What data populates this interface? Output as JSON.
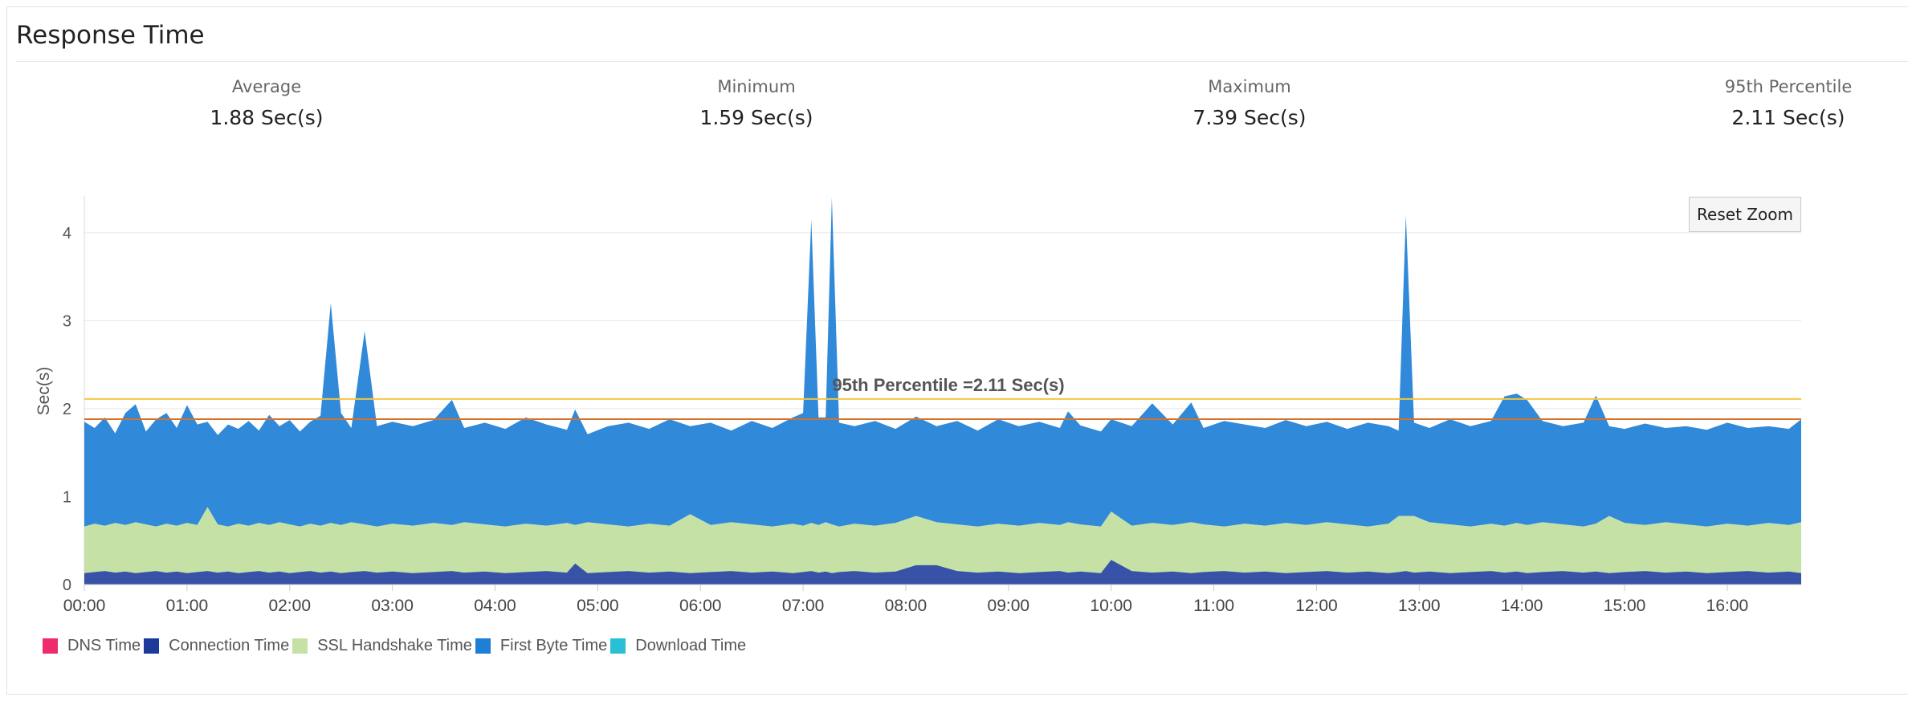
{
  "panel": {
    "title": "Response Time"
  },
  "stats": [
    {
      "label": "Average",
      "value": "1.88 Sec(s)"
    },
    {
      "label": "Minimum",
      "value": "1.59 Sec(s)"
    },
    {
      "label": "Maximum",
      "value": "7.39 Sec(s)"
    },
    {
      "label": "95th Percentile",
      "value": "2.11 Sec(s)"
    }
  ],
  "toolbar": {
    "reset_zoom_label": "Reset Zoom"
  },
  "chart_data": {
    "type": "area",
    "stacked": true,
    "ylabel": "Sec(s)",
    "xlabel": "",
    "ylim": [
      0,
      4.4
    ],
    "yticks": [
      0,
      1,
      2,
      3,
      4
    ],
    "xlim_hours": [
      0,
      16.72
    ],
    "xticks": [
      "00:00",
      "01:00",
      "02:00",
      "03:00",
      "04:00",
      "05:00",
      "06:00",
      "07:00",
      "08:00",
      "09:00",
      "10:00",
      "11:00",
      "12:00",
      "13:00",
      "14:00",
      "15:00",
      "16:00"
    ],
    "grid": "horizontal",
    "legend_position": "bottom-left",
    "series": [
      {
        "name": "DNS Time",
        "color": "#ee2b6d",
        "values": "~0 (not visible)"
      },
      {
        "name": "Connection Time",
        "color": "#1b3a9a",
        "values": "≈0.13 baseline, spikes to ~0.28"
      },
      {
        "name": "SSL Handshake Time",
        "color": "#c5e1a5",
        "values": "≈0.52 layer"
      },
      {
        "name": "First Byte Time",
        "color": "#1e7fd6",
        "values": "≈1.1 layer with spikes to 4.4"
      },
      {
        "name": "Download Time",
        "color": "#29c0d6",
        "values": "~0 (not visible)"
      }
    ],
    "totals_samples": {
      "hours": [
        0.0,
        0.1,
        0.2,
        0.3,
        0.4,
        0.5,
        0.6,
        0.7,
        0.8,
        0.9,
        1.0,
        1.1,
        1.2,
        1.3,
        1.4,
        1.5,
        1.6,
        1.7,
        1.8,
        1.9,
        2.0,
        2.1,
        2.2,
        2.3,
        2.4,
        2.5,
        2.6,
        2.73,
        2.85,
        3.0,
        3.2,
        3.4,
        3.58,
        3.7,
        3.9,
        4.1,
        4.3,
        4.5,
        4.7,
        4.78,
        4.9,
        5.1,
        5.3,
        5.5,
        5.7,
        5.9,
        6.1,
        6.3,
        6.5,
        6.7,
        6.9,
        7.0,
        7.08,
        7.15,
        7.22,
        7.28,
        7.35,
        7.5,
        7.7,
        7.9,
        8.1,
        8.3,
        8.5,
        8.7,
        8.9,
        9.1,
        9.3,
        9.5,
        9.58,
        9.7,
        9.9,
        10.0,
        10.2,
        10.4,
        10.6,
        10.78,
        10.9,
        11.1,
        11.3,
        11.5,
        11.7,
        11.9,
        12.1,
        12.3,
        12.5,
        12.7,
        12.8,
        12.87,
        12.95,
        13.1,
        13.3,
        13.5,
        13.7,
        13.83,
        13.95,
        14.05,
        14.2,
        14.4,
        14.6,
        14.72,
        14.85,
        15.0,
        15.2,
        15.4,
        15.6,
        15.8,
        16.0,
        16.2,
        16.4,
        16.6,
        16.72
      ],
      "total_s": [
        1.85,
        1.78,
        1.9,
        1.72,
        1.95,
        2.05,
        1.74,
        1.88,
        1.95,
        1.78,
        2.04,
        1.82,
        1.85,
        1.7,
        1.82,
        1.77,
        1.86,
        1.75,
        1.93,
        1.8,
        1.87,
        1.74,
        1.85,
        1.92,
        3.2,
        1.95,
        1.78,
        2.88,
        1.8,
        1.85,
        1.8,
        1.87,
        2.1,
        1.78,
        1.84,
        1.77,
        1.9,
        1.82,
        1.76,
        1.99,
        1.71,
        1.8,
        1.84,
        1.77,
        1.88,
        1.8,
        1.84,
        1.75,
        1.86,
        1.78,
        1.9,
        1.95,
        4.15,
        1.9,
        1.9,
        4.4,
        1.84,
        1.8,
        1.86,
        1.77,
        1.91,
        1.8,
        1.86,
        1.75,
        1.88,
        1.8,
        1.85,
        1.78,
        1.97,
        1.81,
        1.74,
        1.88,
        1.8,
        2.06,
        1.82,
        2.07,
        1.78,
        1.86,
        1.82,
        1.78,
        1.87,
        1.8,
        1.85,
        1.77,
        1.84,
        1.8,
        1.75,
        4.2,
        1.84,
        1.78,
        1.88,
        1.8,
        1.86,
        2.14,
        2.17,
        2.1,
        1.86,
        1.8,
        1.84,
        2.15,
        1.8,
        1.77,
        1.83,
        1.78,
        1.8,
        1.76,
        1.84,
        1.78,
        1.8,
        1.77,
        1.88
      ]
    },
    "annotations": [
      {
        "type": "line",
        "value": 2.11,
        "color": "#f5c542",
        "label": "95th Percentile =2.11 Sec(s)"
      },
      {
        "type": "line",
        "value": 1.88,
        "color": "#d4722a",
        "label": ""
      }
    ]
  }
}
